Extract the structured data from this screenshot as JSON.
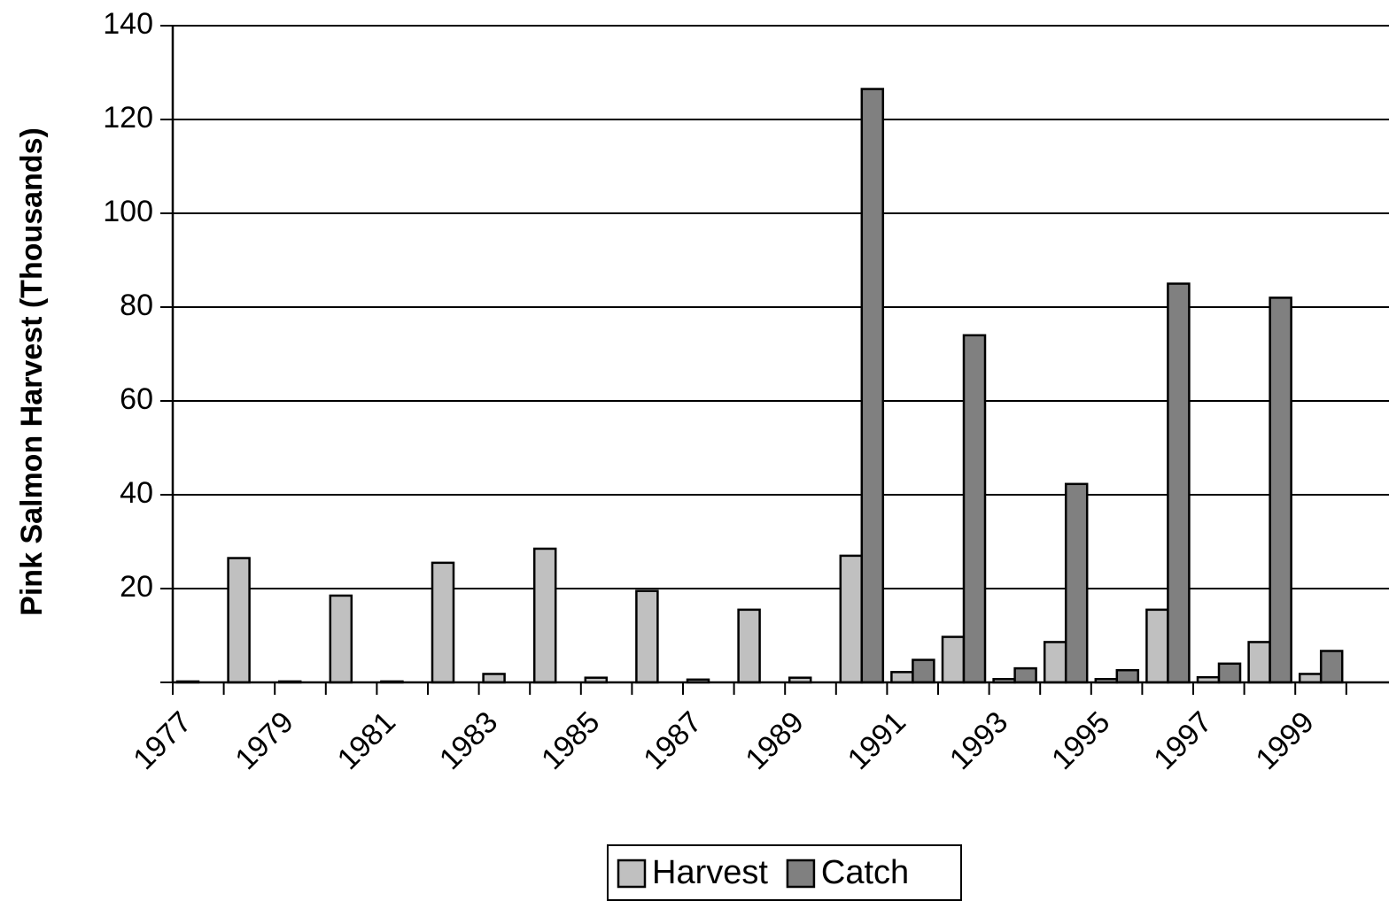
{
  "chart_data": {
    "type": "bar",
    "y_label": "Pink Salmon Harvest (Thousands)",
    "categories": [
      "1977",
      null,
      "1979",
      null,
      "1981",
      null,
      "1983",
      null,
      "1985",
      null,
      "1987",
      null,
      "1989",
      null,
      "1991",
      null,
      "1993",
      null,
      "1995",
      null,
      "1997",
      null,
      "1999"
    ],
    "series": [
      {
        "name": "Harvest",
        "color": "#c0c0c0",
        "values": [
          0.2,
          26.5,
          0.2,
          18.5,
          0.2,
          25.5,
          1.8,
          28.5,
          1,
          19.5,
          0.6,
          15.5,
          1,
          27,
          2.2,
          9.7,
          0.7,
          8.6,
          0.7,
          15.5,
          1.1,
          8.6,
          1.8
        ]
      },
      {
        "name": "Catch",
        "color": "#808080",
        "values": [
          null,
          null,
          null,
          null,
          null,
          null,
          null,
          null,
          null,
          null,
          null,
          null,
          null,
          126.5,
          4.8,
          74,
          3,
          42.3,
          2.6,
          85,
          4,
          82,
          6.7
        ]
      }
    ],
    "ylim": [
      0,
      140
    ],
    "yticks": [
      20,
      40,
      60,
      80,
      100,
      120,
      140
    ],
    "grid": true
  }
}
